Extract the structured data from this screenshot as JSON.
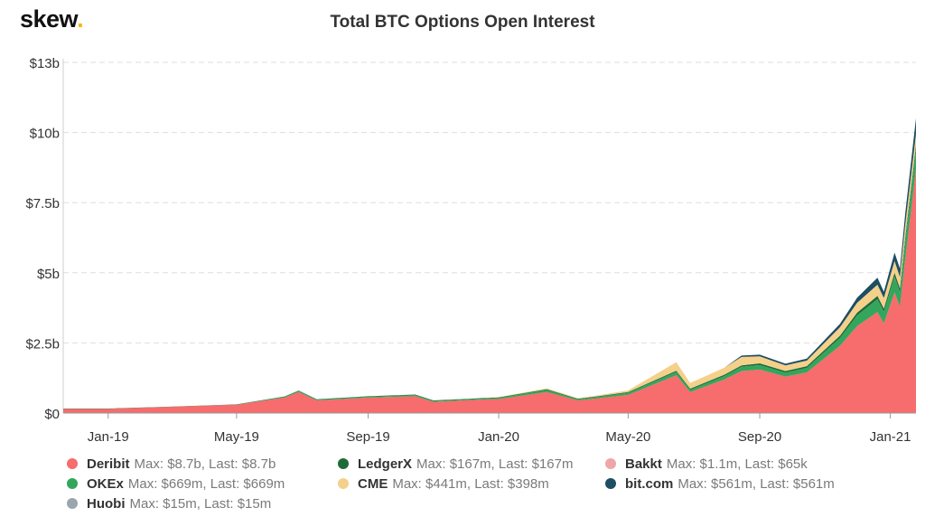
{
  "brand": {
    "name": "skew",
    "dot": "."
  },
  "chart_data": {
    "type": "area",
    "stacked": true,
    "title": "Total BTC Options Open Interest",
    "xlabel": "",
    "ylabel": "",
    "x_ticks": [
      "Jan-19",
      "May-19",
      "Sep-19",
      "Jan-20",
      "May-20",
      "Sep-20",
      "Jan-21"
    ],
    "y_ticks": [
      "$0",
      "$2.5b",
      "$5b",
      "$7.5b",
      "$10b",
      "$13b"
    ],
    "y_tick_values": [
      0,
      2.5,
      5,
      7.5,
      10,
      12.5
    ],
    "ylim": [
      0,
      12.5
    ],
    "x_range": [
      "2018-11-20",
      "2021-01-25"
    ],
    "grid": true,
    "legend_position": "bottom",
    "x": [
      "2018-11-20",
      "2019-01-01",
      "2019-03-01",
      "2019-05-01",
      "2019-06-15",
      "2019-06-28",
      "2019-07-15",
      "2019-09-01",
      "2019-10-15",
      "2019-11-01",
      "2019-12-15",
      "2020-01-01",
      "2020-02-15",
      "2020-03-15",
      "2020-04-01",
      "2020-05-01",
      "2020-06-15",
      "2020-06-28",
      "2020-07-30",
      "2020-08-15",
      "2020-09-01",
      "2020-09-25",
      "2020-10-15",
      "2020-11-15",
      "2020-12-01",
      "2020-12-20",
      "2020-12-26",
      "2021-01-05",
      "2021-01-10",
      "2021-01-15",
      "2021-01-25"
    ],
    "series": [
      {
        "name": "Deribit",
        "color": "#f76c6c",
        "max": "$8.7b",
        "last": "$8.7b",
        "values": [
          0.15,
          0.15,
          0.22,
          0.3,
          0.55,
          0.75,
          0.45,
          0.55,
          0.6,
          0.4,
          0.48,
          0.5,
          0.75,
          0.45,
          0.52,
          0.65,
          1.35,
          0.75,
          1.2,
          1.5,
          1.55,
          1.3,
          1.45,
          2.4,
          3.1,
          3.6,
          3.2,
          4.3,
          3.8,
          5.5,
          8.7
        ]
      },
      {
        "name": "OKEx",
        "color": "#33a65c",
        "max": "$669m",
        "last": "$669m",
        "values": [
          0,
          0,
          0,
          0,
          0.02,
          0.03,
          0.02,
          0.03,
          0.04,
          0.03,
          0.03,
          0.04,
          0.07,
          0.04,
          0.05,
          0.07,
          0.12,
          0.08,
          0.12,
          0.15,
          0.16,
          0.14,
          0.16,
          0.28,
          0.38,
          0.45,
          0.4,
          0.55,
          0.5,
          0.62,
          0.669
        ]
      },
      {
        "name": "Huobi",
        "color": "#9aa5ad",
        "max": "$15m",
        "last": "$15m",
        "values": [
          0,
          0,
          0,
          0,
          0,
          0,
          0,
          0,
          0,
          0,
          0,
          0,
          0,
          0,
          0,
          0,
          0,
          0,
          0,
          0,
          0,
          0,
          0,
          0,
          0,
          0.005,
          0.005,
          0.01,
          0.01,
          0.012,
          0.015
        ]
      },
      {
        "name": "LedgerX",
        "color": "#1e6b3a",
        "max": "$167m",
        "last": "$167m",
        "values": [
          0.01,
          0.01,
          0.01,
          0.01,
          0.02,
          0.02,
          0.02,
          0.02,
          0.02,
          0.02,
          0.02,
          0.02,
          0.03,
          0.02,
          0.02,
          0.03,
          0.04,
          0.04,
          0.05,
          0.05,
          0.06,
          0.06,
          0.06,
          0.08,
          0.1,
          0.12,
          0.12,
          0.14,
          0.14,
          0.15,
          0.167
        ]
      },
      {
        "name": "CME",
        "color": "#f4d08a",
        "max": "$441m",
        "last": "$398m",
        "values": [
          0,
          0,
          0,
          0,
          0,
          0,
          0,
          0,
          0,
          0,
          0,
          0.01,
          0.03,
          0.02,
          0.03,
          0.06,
          0.3,
          0.2,
          0.25,
          0.3,
          0.25,
          0.2,
          0.2,
          0.3,
          0.35,
          0.4,
          0.38,
          0.42,
          0.4,
          0.44,
          0.398
        ]
      },
      {
        "name": "Bakkt",
        "color": "#f0a6a6",
        "max": "$1.1m",
        "last": "$65k",
        "values": [
          0,
          0,
          0,
          0,
          0,
          0,
          0,
          0,
          0,
          0,
          0,
          0.001,
          0.001,
          0.001,
          0.001,
          0.001,
          0.0005,
          0.0005,
          0.0005,
          0.0003,
          0.0003,
          0.0002,
          0.0002,
          0.0001,
          0.0001,
          0.0001,
          0.0001,
          0.0001,
          0.0001,
          0.0001,
          6.5e-05
        ]
      },
      {
        "name": "bit.com",
        "color": "#1d4e63",
        "max": "$561m",
        "last": "$561m",
        "values": [
          0,
          0,
          0,
          0,
          0,
          0,
          0,
          0,
          0,
          0,
          0,
          0,
          0,
          0,
          0,
          0,
          0,
          0,
          0,
          0.05,
          0.06,
          0.06,
          0.07,
          0.12,
          0.18,
          0.25,
          0.22,
          0.3,
          0.3,
          0.4,
          0.561
        ]
      }
    ]
  },
  "legend": [
    {
      "name": "Deribit",
      "detail": "Max: $8.7b, Last: $8.7b",
      "color": "#f76c6c"
    },
    {
      "name": "LedgerX",
      "detail": "Max: $167m, Last: $167m",
      "color": "#1e6b3a"
    },
    {
      "name": "Bakkt",
      "detail": "Max: $1.1m, Last: $65k",
      "color": "#f0a6a6"
    },
    {
      "name": "OKEx",
      "detail": "Max: $669m, Last: $669m",
      "color": "#33a65c"
    },
    {
      "name": "CME",
      "detail": "Max: $441m, Last: $398m",
      "color": "#f4d08a"
    },
    {
      "name": "bit.com",
      "detail": "Max: $561m, Last: $561m",
      "color": "#1d4e63"
    },
    {
      "name": "Huobi",
      "detail": "Max: $15m, Last: $15m",
      "color": "#9aa5ad"
    }
  ]
}
